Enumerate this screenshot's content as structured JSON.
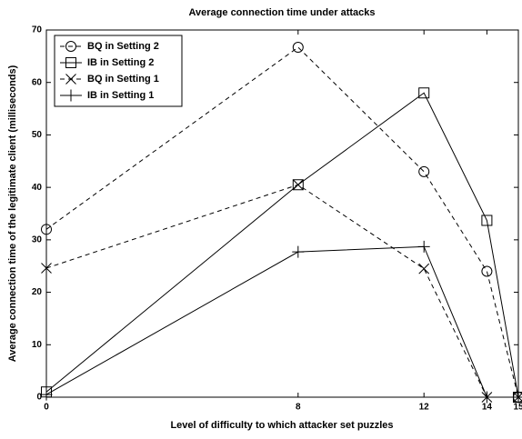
{
  "chart_data": {
    "type": "line",
    "title": "Average connection time under attacks",
    "xlabel": "Level of difficulty to which attacker set puzzles",
    "ylabel": "Average connection time of the legitimate client (milliseconds)",
    "x": [
      0,
      8,
      12,
      14,
      15
    ],
    "series": [
      {
        "name": "BQ in Setting 2",
        "color": "#000000",
        "dash": true,
        "marker": "circle",
        "values": [
          32,
          66.7,
          43,
          24,
          0
        ]
      },
      {
        "name": "IB in Setting 2",
        "color": "#000000",
        "dash": false,
        "marker": "square",
        "values": [
          1,
          40.5,
          58,
          33.7,
          0
        ]
      },
      {
        "name": "BQ in Setting 1",
        "color": "#000000",
        "dash": true,
        "marker": "x",
        "values": [
          24.6,
          40.5,
          24.5,
          0,
          0
        ]
      },
      {
        "name": "IB in Setting 1",
        "color": "#000000",
        "dash": false,
        "marker": "plus",
        "values": [
          0.5,
          27.7,
          28.7,
          0,
          0
        ]
      }
    ],
    "xlim": [
      0,
      15
    ],
    "xticks": [
      0,
      8,
      12,
      14,
      15
    ],
    "ylim": [
      0,
      70
    ],
    "yticks": [
      0,
      10,
      20,
      30,
      40,
      50,
      60,
      70
    ],
    "legend": "upper left"
  }
}
